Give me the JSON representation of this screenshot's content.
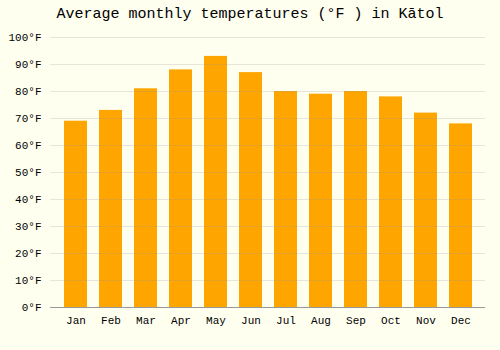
{
  "chart_data": {
    "type": "bar",
    "title": "Average monthly temperatures (°F ) in Kātol",
    "categories": [
      "Jan",
      "Feb",
      "Mar",
      "Apr",
      "May",
      "Jun",
      "Jul",
      "Aug",
      "Sep",
      "Oct",
      "Nov",
      "Dec"
    ],
    "values": [
      69,
      73,
      81,
      88,
      93,
      87,
      80,
      79,
      80,
      78,
      72,
      68
    ],
    "color": "#FFA500",
    "ylim": [
      0,
      100
    ],
    "yticks": [
      {
        "value": 0,
        "label": "0°F"
      },
      {
        "value": 10,
        "label": "10°F"
      },
      {
        "value": 20,
        "label": "20°F"
      },
      {
        "value": 30,
        "label": "30°F"
      },
      {
        "value": 40,
        "label": "40°F"
      },
      {
        "value": 50,
        "label": "50°F"
      },
      {
        "value": 60,
        "label": "60°F"
      },
      {
        "value": 70,
        "label": "70°F"
      },
      {
        "value": 80,
        "label": "80°F"
      },
      {
        "value": 90,
        "label": "90°F"
      },
      {
        "value": 100,
        "label": "100°F"
      }
    ],
    "grid": true
  }
}
